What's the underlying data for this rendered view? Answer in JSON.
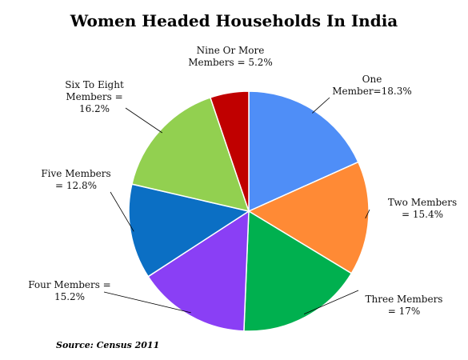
{
  "chart_data": {
    "type": "pie",
    "title": "Women Headed Households In India",
    "source": "Source: Census 2011",
    "slices": [
      {
        "label_lines": [
          "One",
          "Member=18.3%"
        ],
        "value": 18.3,
        "color": "#4f8ef7"
      },
      {
        "label_lines": [
          "Two Members",
          "= 15.4%"
        ],
        "value": 15.4,
        "color": "#ff8a35"
      },
      {
        "label_lines": [
          "Three Members",
          "= 17%"
        ],
        "value": 17.0,
        "color": "#00b04f"
      },
      {
        "label_lines": [
          "Four Members =",
          "15.2%"
        ],
        "value": 15.2,
        "color": "#8a3ff5"
      },
      {
        "label_lines": [
          "Five Members",
          "= 12.8%"
        ],
        "value": 12.8,
        "color": "#0b6fc4"
      },
      {
        "label_lines": [
          "Six To Eight",
          "Members =",
          "16.2%"
        ],
        "value": 16.2,
        "color": "#92d050"
      },
      {
        "label_lines": [
          "Nine Or More",
          "Members = 5.2%"
        ],
        "value": 5.2,
        "color": "#c00000"
      }
    ]
  }
}
